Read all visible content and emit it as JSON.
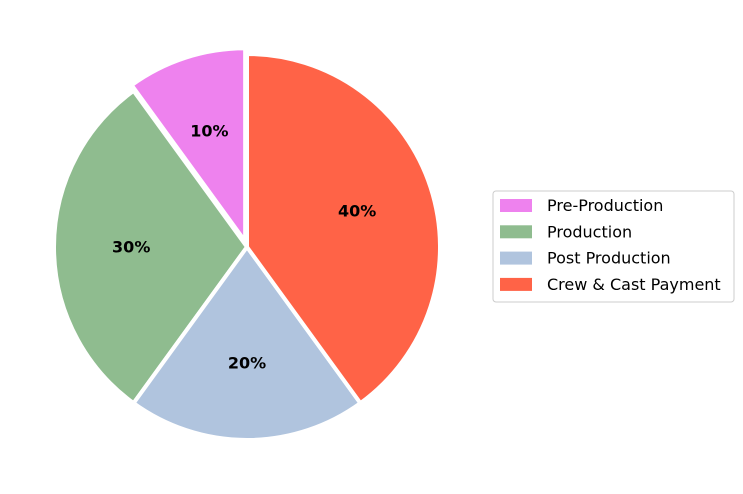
{
  "chart_data": {
    "type": "pie",
    "title": "",
    "categories": [
      "Pre-Production",
      "Production",
      "Post Production",
      "Crew & Cast Payment"
    ],
    "values": [
      10,
      30,
      20,
      40
    ],
    "labels": [
      "10%",
      "30%",
      "20%",
      "40%"
    ],
    "colors": [
      "#ee82ee",
      "#8fbc8f",
      "#b0c4de",
      "#ff6347"
    ],
    "exploded": "Pre-Production",
    "start_angle_deg": 90,
    "direction": "counterclockwise",
    "legend_position": "right"
  }
}
